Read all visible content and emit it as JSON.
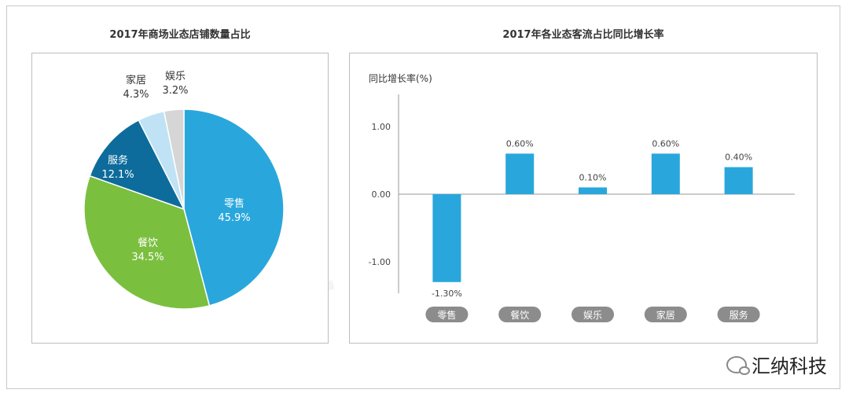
{
  "brand": {
    "text": "汇纳科技",
    "icon": "wechat-icon"
  },
  "watermark": "汇纳科技",
  "chart_data": [
    {
      "type": "pie",
      "title": "2017年商场业态店铺数量占比",
      "slices": [
        {
          "label": "零售",
          "value": 45.9,
          "display": "45.9%",
          "color": "#29a7dc"
        },
        {
          "label": "餐饮",
          "value": 34.5,
          "display": "34.5%",
          "color": "#7bbf3f"
        },
        {
          "label": "服务",
          "value": 12.1,
          "display": "12.1%",
          "color": "#0d6c9c"
        },
        {
          "label": "家居",
          "value": 4.3,
          "display": "4.3%",
          "color": "#bfe3f5"
        },
        {
          "label": "娱乐",
          "value": 3.2,
          "display": "3.2%",
          "color": "#d6d6d6"
        }
      ]
    },
    {
      "type": "bar",
      "title": "2017年各业态客流占比同比增长率",
      "ylabel": "同比增长率(%)",
      "ylim": [
        -1.5,
        1.4
      ],
      "yticks": [
        "1.00",
        "0.00",
        "-1.00"
      ],
      "ytick_values": [
        1,
        0,
        -1
      ],
      "categories": [
        "零售",
        "餐饮",
        "娱乐",
        "家居",
        "服务"
      ],
      "values": [
        -1.3,
        0.6,
        0.1,
        0.6,
        0.4
      ],
      "value_labels": [
        "-1.30%",
        "0.60%",
        "0.10%",
        "0.60%",
        "0.40%"
      ],
      "bar_color": "#29a7dc",
      "category_badge_color": "#8c8c8c"
    }
  ]
}
